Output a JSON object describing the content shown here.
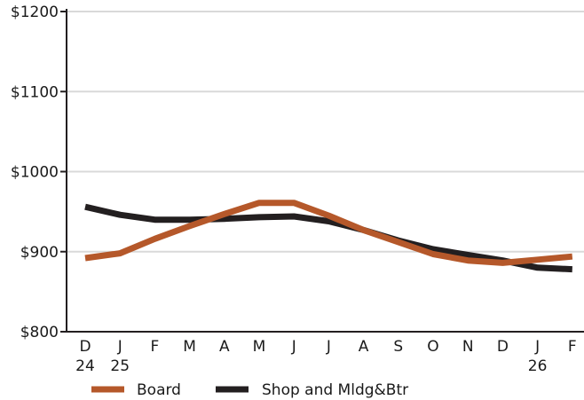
{
  "chart_data": {
    "type": "line",
    "title": "",
    "xlabel": "",
    "ylabel": "",
    "categories": [
      "D",
      "J",
      "F",
      "M",
      "A",
      "M",
      "J",
      "J",
      "A",
      "S",
      "O",
      "N",
      "D",
      "J",
      "F"
    ],
    "year_labels": [
      "24",
      "25",
      "",
      "",
      "",
      "",
      "",
      "",
      "",
      "",
      "",
      "",
      "",
      "26",
      ""
    ],
    "y_ticks": [
      "$800",
      "$900",
      "$1000",
      "$1100",
      "$1200"
    ],
    "ylim": [
      800,
      1200
    ],
    "grid": true,
    "legend_position": "bottom",
    "series": [
      {
        "name": "Board",
        "color": "#b5582a",
        "values": [
          892,
          898,
          916,
          932,
          947,
          961,
          961,
          945,
          927,
          912,
          897,
          889,
          886,
          890,
          894
        ]
      },
      {
        "name": "Shop and Mldg&Btr",
        "color": "#231f20",
        "values": [
          956,
          946,
          940,
          940,
          941,
          943,
          944,
          938,
          927,
          914,
          903,
          896,
          889,
          880,
          878
        ]
      }
    ]
  }
}
